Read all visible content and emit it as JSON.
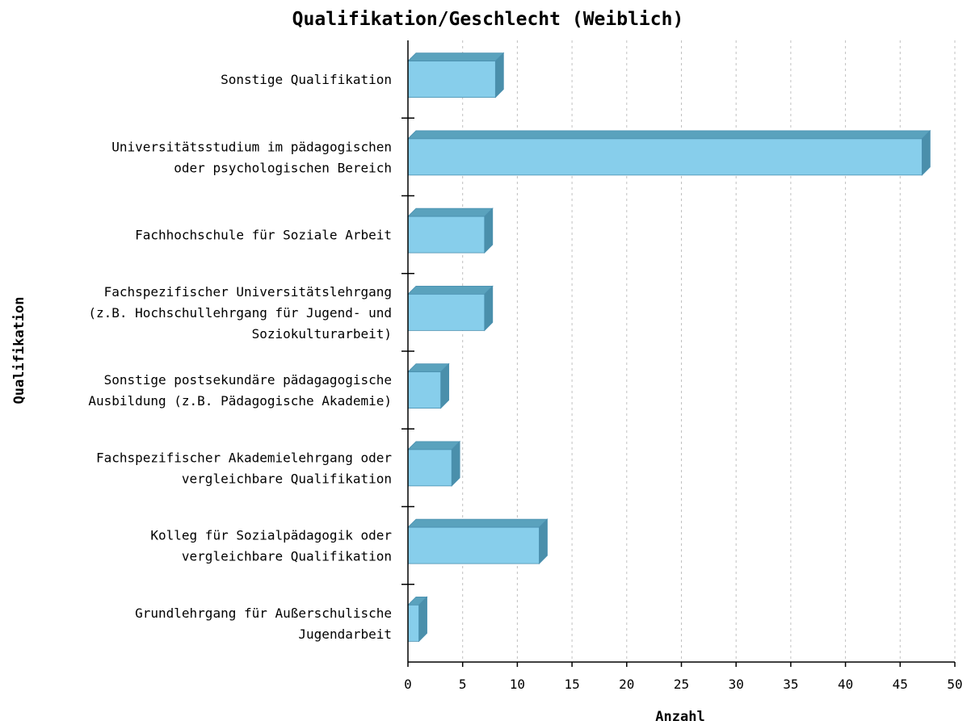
{
  "chart_data": {
    "type": "bar",
    "orientation": "horizontal",
    "title": "Qualifikation/Geschlecht (Weiblich)",
    "xlabel": "Anzahl",
    "ylabel": "Qualifikation",
    "xlim": [
      0,
      50
    ],
    "xticks": [
      0,
      5,
      10,
      15,
      20,
      25,
      30,
      35,
      40,
      45,
      50
    ],
    "grid": true,
    "categories": [
      [
        "Sonstige Qualifikation"
      ],
      [
        "Universitätsstudium im pädagogischen",
        "oder psychologischen Bereich"
      ],
      [
        "Fachhochschule für Soziale Arbeit"
      ],
      [
        "Fachspezifischer Universitätslehrgang",
        "(z.B. Hochschullehrgang für Jugend- und",
        "Soziokulturarbeit)"
      ],
      [
        "Sonstige postsekundäre pädagagogische",
        "Ausbildung (z.B. Pädagogische Akademie)"
      ],
      [
        "Fachspezifischer Akademielehrgang oder",
        "vergleichbare Qualifikation"
      ],
      [
        "Kolleg für Sozialpädagogik oder",
        "vergleichbare Qualifikation"
      ],
      [
        "Grundlehrgang für Außerschulische",
        "Jugendarbeit"
      ]
    ],
    "values": [
      8,
      47,
      7,
      7,
      3,
      4,
      12,
      1
    ],
    "colors": {
      "bar_front": "#87ceeb",
      "bar_top": "#5aa2bd",
      "bar_side": "#4a8fab",
      "bar_edge": "#4a90b0"
    }
  }
}
